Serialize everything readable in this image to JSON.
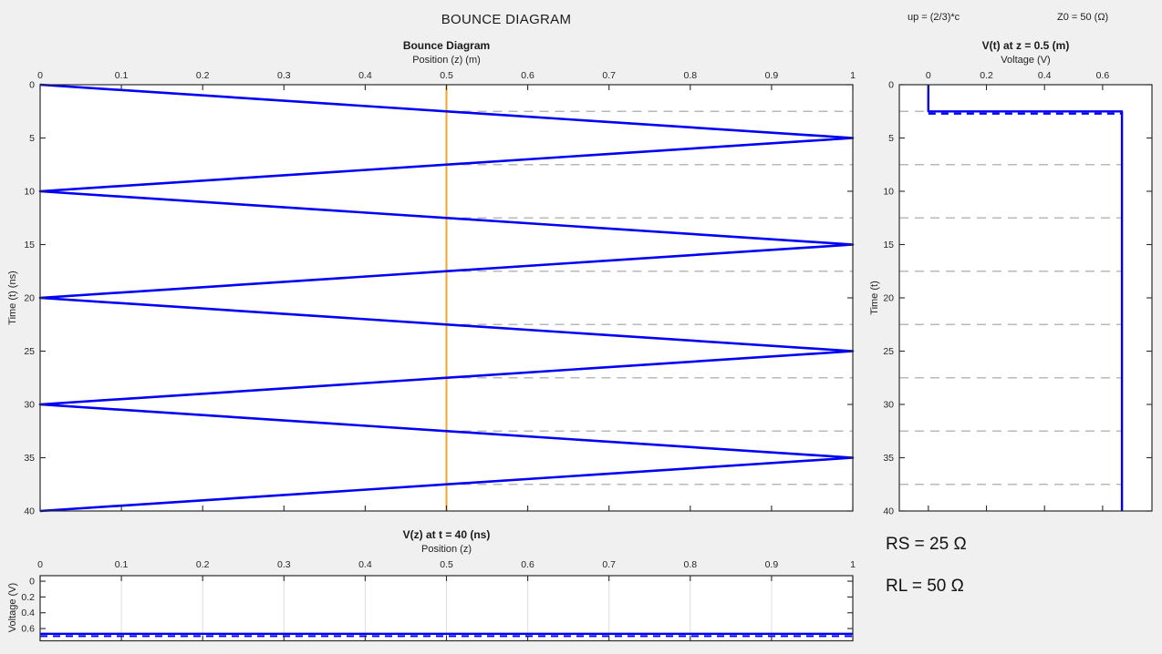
{
  "header": {
    "title": "BOUNCE DIAGRAM",
    "up_label": "up = (2/3)*c",
    "z0_label": "Z0 = 50 (Ω)"
  },
  "annotations": {
    "rs_label": "RS = 25 Ω",
    "rl_label": "RL = 50 Ω"
  },
  "colors": {
    "trace_blue": "#0000F5",
    "observation_orange": "#F7A42B",
    "dashed_gray": "#B9B9B9",
    "grid_gray": "#DEDEDE",
    "axis_dark": "#2B2B2B",
    "plot_bg": "#FFFFFF",
    "figure_bg": "#F0F0F0"
  },
  "chart_data": [
    {
      "id": "bounce_diagram",
      "type": "line",
      "title": "Bounce Diagram",
      "xlabel": "Position (z) (m)",
      "ylabel": "Time (t) (ns)",
      "x_axis_side": "top",
      "y_direction": "downward",
      "xlim": [
        0,
        1
      ],
      "ylim": [
        0,
        40
      ],
      "x_ticks": [
        "0",
        "0.1",
        "0.2",
        "0.3",
        "0.4",
        "0.5",
        "0.6",
        "0.7",
        "0.8",
        "0.9",
        "1"
      ],
      "y_ticks": [
        "0",
        "5",
        "10",
        "15",
        "20",
        "25",
        "30",
        "35",
        "40"
      ],
      "grid": "off",
      "series": [
        {
          "name": "bounce-ray-path",
          "style": "solid",
          "points_zt": [
            [
              0,
              0
            ],
            [
              1,
              5
            ],
            [
              0,
              10
            ],
            [
              1,
              15
            ],
            [
              0,
              20
            ],
            [
              1,
              25
            ],
            [
              0,
              30
            ],
            [
              1,
              35
            ],
            [
              0,
              40
            ]
          ]
        }
      ],
      "observation_line_z": 0.5,
      "crossing_dashed_times": [
        2.5,
        7.5,
        12.5,
        17.5,
        22.5,
        27.5,
        32.5,
        37.5
      ],
      "crossing_dash_span_z": [
        0.5,
        1
      ]
    },
    {
      "id": "voltage_vs_time",
      "type": "line",
      "title": "V(t) at z = 0.5 (m)",
      "xlabel": "Voltage (V)",
      "ylabel": "Time (t)",
      "x_axis_side": "top",
      "y_direction": "downward",
      "xlim": [
        -0.1,
        0.77
      ],
      "ylim": [
        0,
        40
      ],
      "x_ticks": [
        "0",
        "0.2",
        "0.4",
        "0.6"
      ],
      "y_ticks": [
        "0",
        "5",
        "10",
        "15",
        "20",
        "25",
        "30",
        "35",
        "40"
      ],
      "grid": "off",
      "step_points_vt": [
        [
          0,
          0
        ],
        [
          0,
          2.5
        ],
        [
          0.6667,
          2.5
        ],
        [
          0.6667,
          40
        ]
      ],
      "dashed_overlay": {
        "t": 2.5,
        "v_from": 0,
        "v_to": 0.6667
      },
      "crossing_dashed_times": [
        2.5,
        7.5,
        12.5,
        17.5,
        22.5,
        27.5,
        32.5,
        37.5
      ],
      "crossing_dash_span_v": [
        -0.1,
        0.6667
      ],
      "steady_state_voltage": 0.6667
    },
    {
      "id": "voltage_vs_position",
      "type": "line",
      "title": "V(z) at t = 40 (ns)",
      "xlabel": "Position (z)",
      "ylabel": "Voltage (V)",
      "x_axis_side": "top",
      "y_direction": "downward",
      "xlim": [
        0,
        1
      ],
      "ylim": [
        -0.07,
        0.755
      ],
      "x_ticks": [
        "0",
        "0.1",
        "0.2",
        "0.3",
        "0.4",
        "0.5",
        "0.6",
        "0.7",
        "0.8",
        "0.9",
        "1"
      ],
      "y_ticks": [
        "0",
        "0.2",
        "0.4",
        "0.6"
      ],
      "grid": "x",
      "line_points_zv": [
        [
          0,
          0.6667
        ],
        [
          1,
          0.6667
        ]
      ],
      "dashed_overlay_v": 0.6667
    }
  ]
}
